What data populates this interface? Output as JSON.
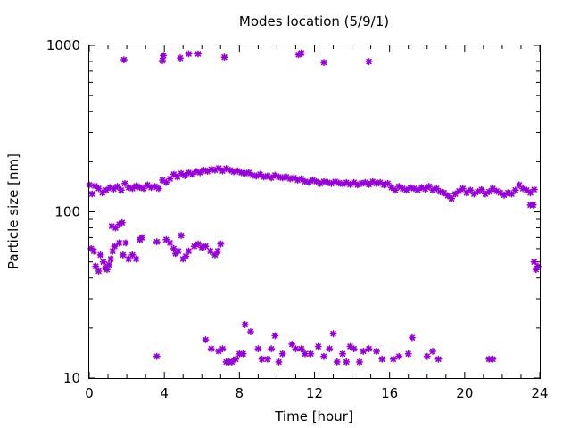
{
  "chart_data": {
    "type": "scatter",
    "title": "Modes location (5/9/1)",
    "xlabel": "Time [hour]",
    "ylabel": "Particle size [nm]",
    "xlim": [
      0,
      24
    ],
    "ylim": [
      10,
      1000
    ],
    "y_scale": "log",
    "grid": false,
    "x_ticks": [
      0,
      4,
      8,
      12,
      16,
      20,
      24
    ],
    "y_ticks": [
      10,
      100,
      1000
    ],
    "marker_color": "#9400d3",
    "series": [
      {
        "points": [
          [
            1.85,
            820
          ],
          [
            3.9,
            810
          ],
          [
            3.95,
            870
          ],
          [
            4.85,
            840
          ],
          [
            5.3,
            890
          ],
          [
            5.8,
            890
          ],
          [
            7.2,
            850
          ],
          [
            11.15,
            880
          ],
          [
            11.3,
            900
          ],
          [
            12.5,
            790
          ],
          [
            14.9,
            800
          ],
          [
            0.0,
            145
          ],
          [
            0.15,
            128
          ],
          [
            0.3,
            143
          ],
          [
            0.5,
            138
          ],
          [
            0.7,
            130
          ],
          [
            0.9,
            135
          ],
          [
            1.1,
            140
          ],
          [
            1.3,
            137
          ],
          [
            1.5,
            142
          ],
          [
            1.7,
            135
          ],
          [
            1.9,
            148
          ],
          [
            2.1,
            140
          ],
          [
            2.3,
            138
          ],
          [
            2.5,
            143
          ],
          [
            2.7,
            140
          ],
          [
            2.9,
            138
          ],
          [
            3.1,
            145
          ],
          [
            3.3,
            140
          ],
          [
            3.5,
            142
          ],
          [
            3.7,
            138
          ],
          [
            3.9,
            155
          ],
          [
            4.1,
            150
          ],
          [
            4.3,
            158
          ],
          [
            4.5,
            168
          ],
          [
            4.7,
            162
          ],
          [
            4.9,
            170
          ],
          [
            5.1,
            165
          ],
          [
            5.3,
            172
          ],
          [
            5.5,
            168
          ],
          [
            5.7,
            175
          ],
          [
            5.9,
            172
          ],
          [
            6.1,
            178
          ],
          [
            6.3,
            175
          ],
          [
            6.5,
            180
          ],
          [
            6.7,
            178
          ],
          [
            6.9,
            183
          ],
          [
            7.1,
            176
          ],
          [
            7.3,
            182
          ],
          [
            7.5,
            178
          ],
          [
            7.7,
            174
          ],
          [
            7.9,
            176
          ],
          [
            8.1,
            172
          ],
          [
            8.3,
            170
          ],
          [
            8.5,
            172
          ],
          [
            8.7,
            166
          ],
          [
            8.9,
            164
          ],
          [
            9.1,
            168
          ],
          [
            9.3,
            162
          ],
          [
            9.5,
            164
          ],
          [
            9.7,
            160
          ],
          [
            9.9,
            166
          ],
          [
            10.1,
            162
          ],
          [
            10.3,
            160
          ],
          [
            10.5,
            162
          ],
          [
            10.7,
            158
          ],
          [
            10.9,
            160
          ],
          [
            11.1,
            155
          ],
          [
            11.3,
            158
          ],
          [
            11.5,
            152
          ],
          [
            11.7,
            150
          ],
          [
            11.9,
            155
          ],
          [
            12.1,
            152
          ],
          [
            12.3,
            148
          ],
          [
            12.5,
            152
          ],
          [
            12.7,
            150
          ],
          [
            12.9,
            148
          ],
          [
            13.1,
            152
          ],
          [
            13.3,
            149
          ],
          [
            13.5,
            147
          ],
          [
            13.7,
            150
          ],
          [
            13.9,
            146
          ],
          [
            14.1,
            150
          ],
          [
            14.3,
            145
          ],
          [
            14.5,
            148
          ],
          [
            14.7,
            150
          ],
          [
            14.9,
            146
          ],
          [
            15.1,
            152
          ],
          [
            15.3,
            148
          ],
          [
            15.5,
            150
          ],
          [
            15.7,
            145
          ],
          [
            15.9,
            148
          ],
          [
            16.1,
            140
          ],
          [
            16.3,
            135
          ],
          [
            16.5,
            142
          ],
          [
            16.7,
            138
          ],
          [
            16.9,
            135
          ],
          [
            17.1,
            140
          ],
          [
            17.3,
            138
          ],
          [
            17.5,
            135
          ],
          [
            17.7,
            140
          ],
          [
            17.9,
            137
          ],
          [
            18.1,
            142
          ],
          [
            18.3,
            135
          ],
          [
            18.5,
            138
          ],
          [
            18.7,
            132
          ],
          [
            18.9,
            130
          ],
          [
            19.1,
            125
          ],
          [
            19.3,
            120
          ],
          [
            19.5,
            128
          ],
          [
            19.7,
            133
          ],
          [
            19.9,
            138
          ],
          [
            20.1,
            130
          ],
          [
            20.3,
            135
          ],
          [
            20.5,
            128
          ],
          [
            20.7,
            132
          ],
          [
            20.9,
            136
          ],
          [
            21.1,
            128
          ],
          [
            21.3,
            132
          ],
          [
            21.5,
            138
          ],
          [
            21.7,
            133
          ],
          [
            21.9,
            130
          ],
          [
            22.1,
            126
          ],
          [
            22.3,
            130
          ],
          [
            22.5,
            128
          ],
          [
            22.7,
            135
          ],
          [
            22.9,
            145
          ],
          [
            23.1,
            138
          ],
          [
            23.3,
            135
          ],
          [
            23.5,
            130
          ],
          [
            23.7,
            136
          ],
          [
            23.5,
            110
          ],
          [
            23.65,
            110
          ],
          [
            0.1,
            60
          ],
          [
            0.25,
            58
          ],
          [
            0.35,
            47
          ],
          [
            0.5,
            44
          ],
          [
            0.6,
            55
          ],
          [
            0.75,
            50
          ],
          [
            0.85,
            46
          ],
          [
            0.95,
            45
          ],
          [
            1.05,
            48
          ],
          [
            1.15,
            52
          ],
          [
            1.25,
            58
          ],
          [
            1.35,
            62
          ],
          [
            1.2,
            82
          ],
          [
            1.4,
            80
          ],
          [
            1.6,
            84
          ],
          [
            1.75,
            86
          ],
          [
            1.6,
            65
          ],
          [
            1.8,
            55
          ],
          [
            1.95,
            65
          ],
          [
            2.1,
            52
          ],
          [
            2.3,
            55
          ],
          [
            2.5,
            52
          ],
          [
            2.7,
            68
          ],
          [
            2.8,
            70
          ],
          [
            3.6,
            66
          ],
          [
            4.1,
            68
          ],
          [
            4.3,
            65
          ],
          [
            4.5,
            60
          ],
          [
            4.6,
            56
          ],
          [
            4.75,
            58
          ],
          [
            4.9,
            72
          ],
          [
            5.0,
            52
          ],
          [
            5.15,
            54
          ],
          [
            5.3,
            58
          ],
          [
            5.6,
            62
          ],
          [
            5.8,
            64
          ],
          [
            6.0,
            61
          ],
          [
            6.2,
            62
          ],
          [
            6.45,
            58
          ],
          [
            6.7,
            55
          ],
          [
            6.85,
            58
          ],
          [
            7.0,
            64
          ],
          [
            23.7,
            50
          ],
          [
            23.8,
            45
          ],
          [
            23.9,
            47
          ],
          [
            3.6,
            13.5
          ],
          [
            6.2,
            17
          ],
          [
            6.5,
            15
          ],
          [
            6.9,
            14.5
          ],
          [
            7.1,
            15
          ],
          [
            7.3,
            12.5
          ],
          [
            7.45,
            12.5
          ],
          [
            7.6,
            12.5
          ],
          [
            7.8,
            13
          ],
          [
            8.0,
            14
          ],
          [
            8.2,
            14
          ],
          [
            8.3,
            21
          ],
          [
            8.6,
            19
          ],
          [
            9.0,
            15
          ],
          [
            9.2,
            13
          ],
          [
            9.5,
            13
          ],
          [
            9.7,
            15
          ],
          [
            9.9,
            18
          ],
          [
            10.1,
            12.5
          ],
          [
            10.3,
            14
          ],
          [
            10.8,
            16
          ],
          [
            11.0,
            15
          ],
          [
            11.3,
            15
          ],
          [
            11.5,
            14
          ],
          [
            11.8,
            14
          ],
          [
            12.2,
            15.5
          ],
          [
            12.5,
            13.5
          ],
          [
            12.8,
            15
          ],
          [
            13.0,
            18.5
          ],
          [
            13.2,
            12.5
          ],
          [
            13.5,
            14
          ],
          [
            13.7,
            12.5
          ],
          [
            13.9,
            15.5
          ],
          [
            14.1,
            15
          ],
          [
            14.4,
            12.5
          ],
          [
            14.6,
            14.5
          ],
          [
            14.9,
            15
          ],
          [
            15.3,
            14.5
          ],
          [
            15.6,
            13
          ],
          [
            16.2,
            13
          ],
          [
            16.5,
            13.5
          ],
          [
            17.0,
            14
          ],
          [
            17.2,
            17.5
          ],
          [
            18.0,
            13.5
          ],
          [
            18.3,
            14.5
          ],
          [
            18.6,
            13
          ],
          [
            21.3,
            13
          ],
          [
            21.5,
            13
          ]
        ]
      }
    ]
  }
}
